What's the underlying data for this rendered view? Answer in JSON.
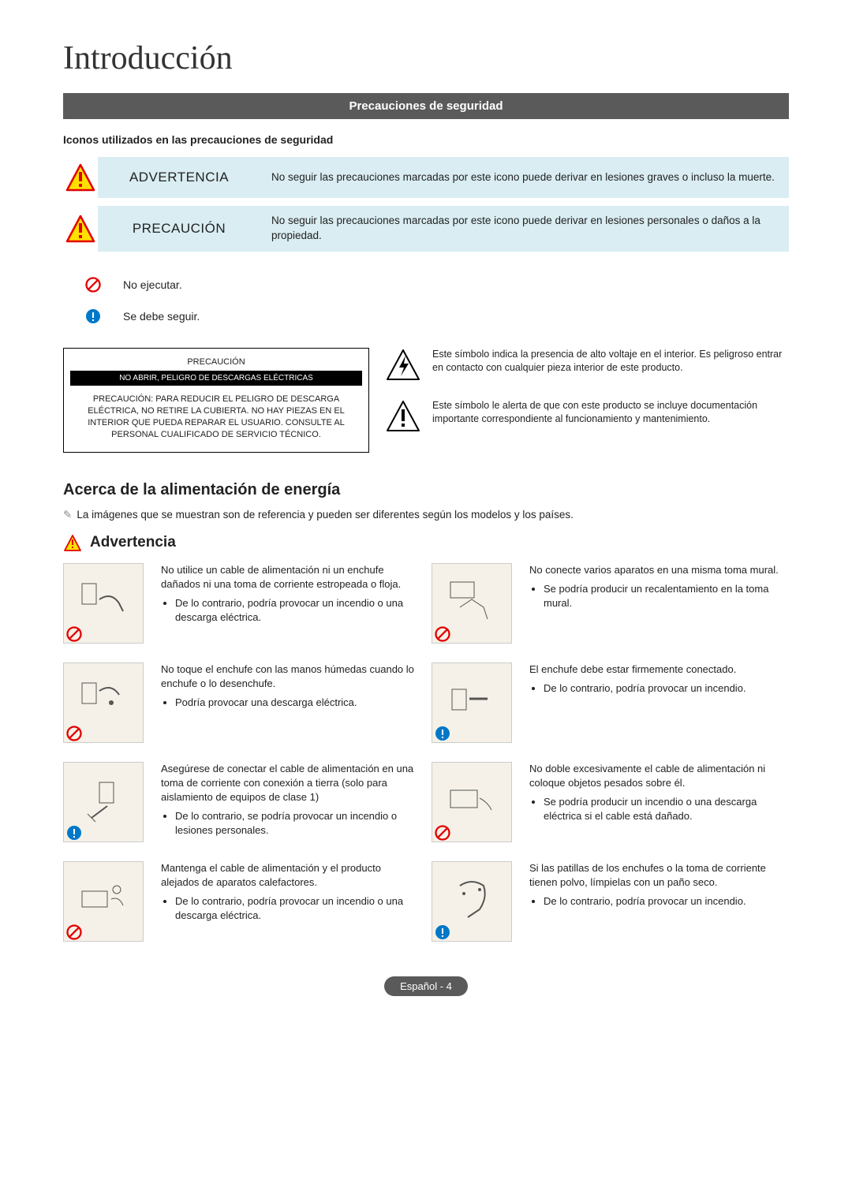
{
  "colors": {
    "bar_bg": "#5a5a5a",
    "blue_bg": "#d9edf2",
    "warn_triangle_fill": "#ffe100",
    "warn_triangle_stroke": "#e30000",
    "prohibit": "#e30000",
    "mandatory": "#0078c8",
    "illus_bg": "#f5f1e8"
  },
  "title": "Introducción",
  "section_bar": "Precauciones de seguridad",
  "icons_sub": "Iconos utilizados en las precauciones de seguridad",
  "icon_rows": [
    {
      "label": "ADVERTENCIA",
      "desc": "No seguir las precauciones marcadas por este icono puede derivar en lesiones graves o incluso la muerte."
    },
    {
      "label": "PRECAUCIÓN",
      "desc": "No seguir las precauciones marcadas por este icono puede derivar en lesiones personales o daños a la propiedad."
    }
  ],
  "simple": {
    "no": "No ejecutar.",
    "yes": "Se debe seguir."
  },
  "caution_card": {
    "title": "PRECAUCIÓN",
    "bar": "NO ABRIR, PELIGRO DE DESCARGAS ELÉCTRICAS",
    "body": "PRECAUCIÓN: PARA REDUCIR EL PELIGRO DE DESCARGA ELÉCTRICA, NO RETIRE LA CUBIERTA. NO HAY PIEZAS EN EL INTERIOR QUE PUEDA REPARAR EL USUARIO. CONSULTE AL PERSONAL CUALIFICADO DE SERVICIO TÉCNICO."
  },
  "symbols": {
    "volt": "Este símbolo indica la presencia de alto voltaje en el interior. Es peligroso entrar en contacto con cualquier pieza interior de este producto.",
    "doc": "Este símbolo le alerta de que con este producto se incluye documentación importante correspondiente al funcionamiento y mantenimiento."
  },
  "h2": "Acerca de la alimentación de energía",
  "note": "La imágenes que se muestran son de referencia y pueden ser diferentes según los modelos y los países.",
  "adv_heading": "Advertencia",
  "warnings": [
    {
      "corner": "prohibit",
      "head": "No utilice un cable de alimentación ni un enchufe dañados ni una toma de corriente estropeada o floja.",
      "bullet": "De lo contrario, podría provocar un incendio o una descarga eléctrica."
    },
    {
      "corner": "prohibit",
      "head": "No conecte varios aparatos en una misma toma mural.",
      "bullet": "Se podría producir un recalentamiento en la toma mural."
    },
    {
      "corner": "prohibit",
      "head": "No toque el enchufe con las manos húmedas cuando lo enchufe o lo desenchufe.",
      "bullet": "Podría provocar una descarga eléctrica."
    },
    {
      "corner": "mandatory",
      "head": "El enchufe debe estar firmemente conectado.",
      "bullet": "De lo contrario, podría provocar un incendio."
    },
    {
      "corner": "mandatory",
      "head": "Asegúrese de conectar el cable de alimentación en una toma de corriente con conexión a tierra (solo para aislamiento de equipos de clase 1)",
      "bullet": "De lo contrario, se podría provocar un incendio o lesiones personales."
    },
    {
      "corner": "prohibit",
      "head": "No doble excesivamente el cable de alimentación ni coloque objetos pesados sobre él.",
      "bullet": "Se podría producir un incendio o una descarga eléctrica si el cable está dañado."
    },
    {
      "corner": "prohibit",
      "head": "Mantenga el cable de alimentación y el producto alejados de aparatos calefactores.",
      "bullet": "De lo contrario, podría provocar un incendio o una descarga eléctrica."
    },
    {
      "corner": "mandatory",
      "head": "Si las patillas de los enchufes o la toma de corriente tienen polvo, límpielas con un paño seco.",
      "bullet": "De lo contrario, podría provocar un incendio."
    }
  ],
  "footer": "Español - 4"
}
